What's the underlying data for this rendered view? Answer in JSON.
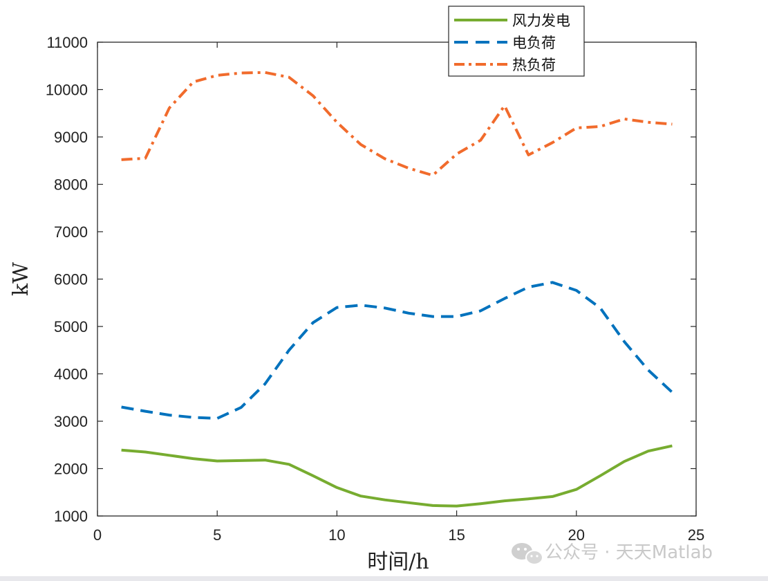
{
  "chart_data": {
    "type": "line",
    "title": "",
    "xlabel": "时间/h",
    "ylabel": "kW",
    "xlim": [
      0,
      25
    ],
    "ylim": [
      1000,
      11000
    ],
    "xticks": [
      0,
      5,
      10,
      15,
      20,
      25
    ],
    "yticks": [
      1000,
      2000,
      3000,
      4000,
      5000,
      6000,
      7000,
      8000,
      9000,
      10000,
      11000
    ],
    "x": [
      1,
      2,
      3,
      4,
      5,
      6,
      7,
      8,
      9,
      10,
      11,
      12,
      13,
      14,
      15,
      16,
      17,
      18,
      19,
      20,
      21,
      22,
      23,
      24
    ],
    "series": [
      {
        "name": "风力发电",
        "color": "#77ac30",
        "dash": "solid",
        "values": [
          2390,
          2350,
          2280,
          2210,
          2160,
          2170,
          2180,
          2090,
          1850,
          1600,
          1420,
          1340,
          1280,
          1220,
          1210,
          1260,
          1320,
          1360,
          1410,
          1560,
          1850,
          2150,
          2370,
          2480
        ]
      },
      {
        "name": "电负荷",
        "color": "#0072bd",
        "dash": "dashed",
        "values": [
          3300,
          3210,
          3130,
          3080,
          3060,
          3290,
          3790,
          4500,
          5080,
          5400,
          5450,
          5390,
          5280,
          5210,
          5210,
          5330,
          5590,
          5830,
          5930,
          5760,
          5390,
          4680,
          4080,
          3610
        ]
      },
      {
        "name": "热负荷",
        "color": "#f16b2c",
        "dash": "dashdot",
        "values": [
          8520,
          8550,
          9610,
          10160,
          10300,
          10350,
          10360,
          10260,
          9870,
          9310,
          8840,
          8540,
          8340,
          8190,
          8640,
          8930,
          9660,
          8620,
          8880,
          9190,
          9220,
          9380,
          9310,
          9270
        ]
      }
    ],
    "legend_position": "top-right",
    "grid": false
  },
  "watermark": {
    "text": "公众号 · 天天Matlab",
    "icon": "wechat-icon"
  }
}
